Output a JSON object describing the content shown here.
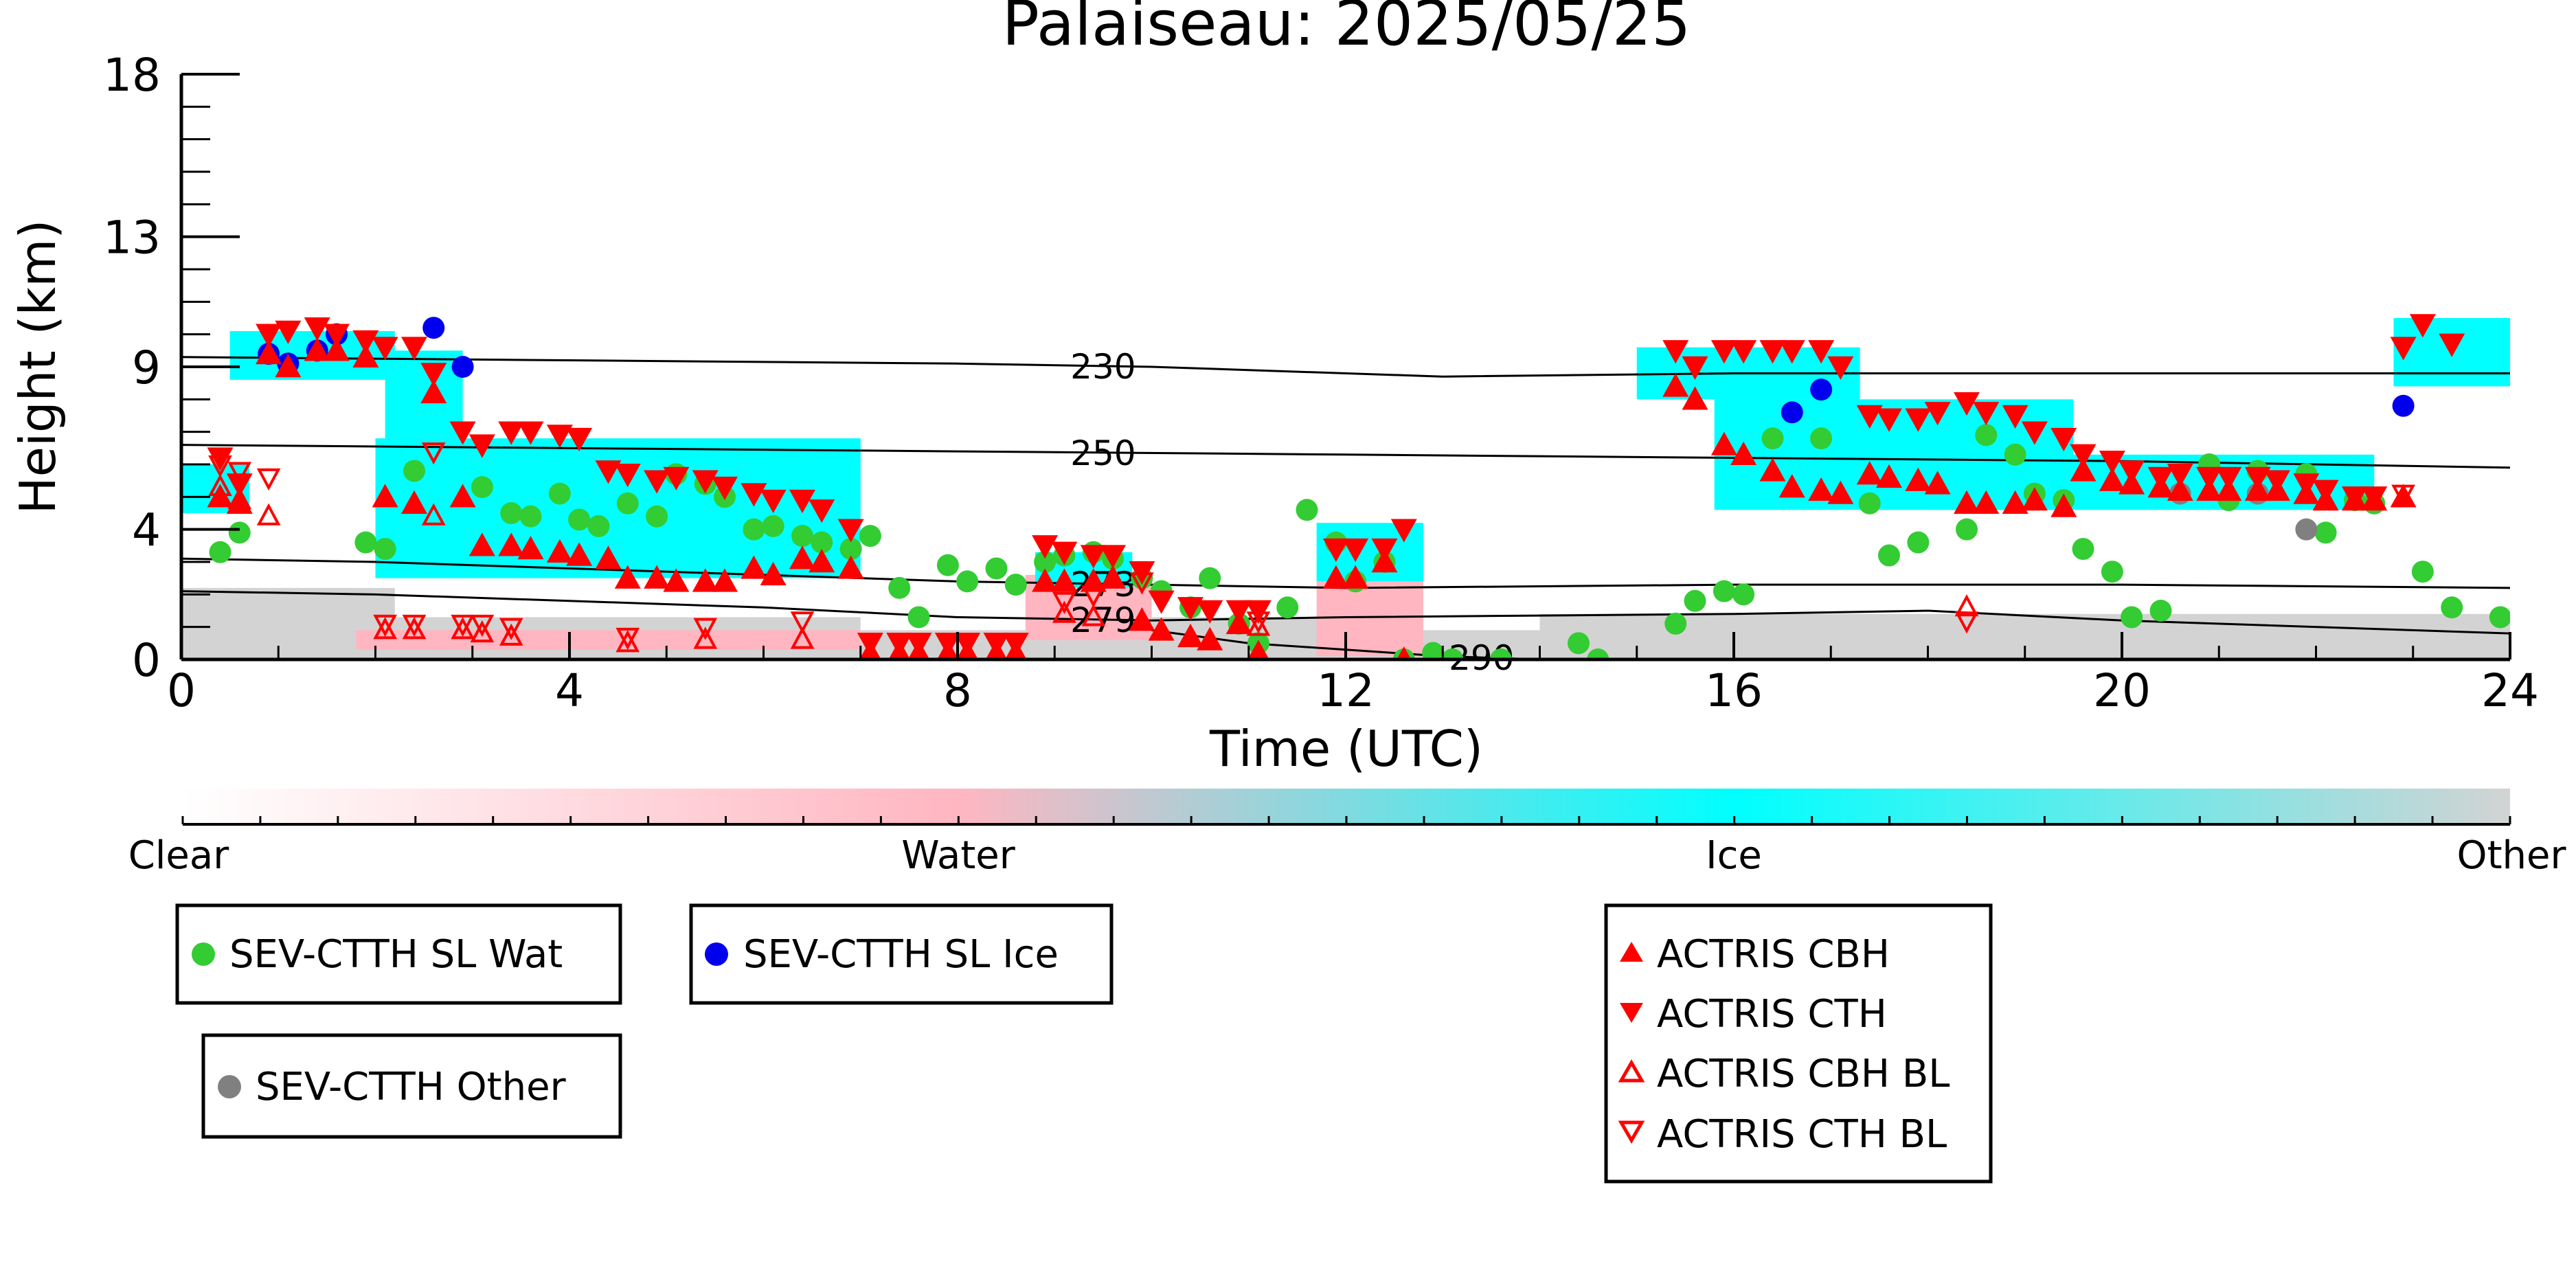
{
  "chart_data": {
    "type": "scatter",
    "title": "Palaiseau: 2025/05/25",
    "xlabel": "Time (UTC)",
    "ylabel": "Height (km)",
    "xlim": [
      0,
      24
    ],
    "ylim": [
      0,
      18
    ],
    "x_ticks": [
      0,
      4,
      8,
      12,
      16,
      20,
      24
    ],
    "y_ticks": [
      0,
      4,
      9,
      13,
      18
    ],
    "y_tick_labels": [
      "0",
      "4",
      "9",
      "13",
      "18"
    ],
    "grid": false,
    "colorbar": {
      "labels": [
        "Clear",
        "Water",
        "Ice",
        "Other"
      ],
      "colors": [
        "#ffffff",
        "#ffb6c1",
        "#00ffff",
        "#d3d3d3"
      ]
    },
    "temperature_contours": [
      {
        "label": "230",
        "label_x": 9.5,
        "x": [
          0,
          4,
          8,
          10,
          13,
          16,
          20,
          24
        ],
        "y": [
          9.3,
          9.2,
          9.1,
          9.0,
          8.7,
          8.8,
          8.8,
          8.8
        ]
      },
      {
        "label": "250",
        "label_x": 9.5,
        "x": [
          0,
          4,
          8,
          12,
          16,
          20,
          24
        ],
        "y": [
          6.6,
          6.5,
          6.4,
          6.3,
          6.2,
          6.1,
          5.9
        ]
      },
      {
        "label": "273",
        "label_x": 9.5,
        "x": [
          0,
          2,
          4,
          6,
          8,
          10,
          12,
          16,
          20,
          24
        ],
        "y": [
          3.1,
          3.0,
          2.8,
          2.6,
          2.4,
          2.3,
          2.2,
          2.3,
          2.3,
          2.2
        ]
      },
      {
        "label": "279",
        "label_x": 9.5,
        "x": [
          0,
          2,
          4,
          6,
          8,
          10,
          12,
          16,
          18,
          20,
          24
        ],
        "y": [
          2.1,
          2.0,
          1.8,
          1.6,
          1.3,
          1.2,
          1.3,
          1.4,
          1.5,
          1.2,
          0.8
        ]
      },
      {
        "label": "290",
        "label_x": 13.4,
        "x": [
          10,
          11,
          12,
          13,
          14,
          15,
          16,
          17
        ],
        "y": [
          0.9,
          0.5,
          0.3,
          0.1,
          0.0,
          0.0,
          0.0,
          0.0
        ]
      }
    ],
    "series": [
      {
        "name": "SEV-CTTH SL Wat",
        "color": "#33cc33",
        "marker": "circle",
        "x": [
          0.4,
          0.6,
          1.9,
          2.1,
          2.4,
          3.1,
          3.4,
          3.6,
          3.9,
          4.1,
          4.3,
          4.6,
          4.9,
          5.1,
          5.4,
          5.6,
          5.9,
          6.1,
          6.4,
          6.6,
          6.9,
          7.1,
          7.4,
          7.6,
          7.9,
          8.1,
          8.4,
          8.6,
          8.9,
          9.1,
          9.4,
          9.6,
          9.9,
          10.1,
          10.4,
          10.6,
          10.9,
          11.1,
          11.4,
          11.6,
          11.9,
          12.1,
          12.4,
          12.6,
          12.9,
          13.1,
          13.6,
          14.4,
          14.6,
          15.4,
          15.6,
          15.9,
          16.1,
          16.4,
          16.9,
          17.4,
          17.6,
          17.9,
          18.4,
          18.6,
          18.9,
          19.1,
          19.4,
          19.6,
          19.9,
          20.1,
          20.4,
          20.9,
          21.1,
          21.4,
          21.9,
          22.1,
          22.4,
          22.6,
          23.1,
          23.4,
          23.9
        ],
        "y": [
          3.3,
          3.9,
          3.6,
          3.4,
          5.8,
          5.3,
          4.5,
          4.4,
          5.1,
          4.3,
          4.1,
          4.8,
          4.4,
          5.7,
          5.4,
          5.0,
          4.0,
          4.1,
          3.8,
          3.6,
          3.4,
          3.8,
          2.2,
          1.3,
          2.9,
          2.4,
          2.8,
          2.3,
          3.0,
          3.2,
          3.3,
          3.1,
          2.5,
          2.1,
          1.6,
          2.5,
          1.1,
          0.5,
          1.6,
          4.6,
          3.6,
          2.4,
          3.0,
          0.0,
          0.2,
          0.0,
          0.0,
          0.5,
          0.0,
          1.1,
          1.8,
          2.1,
          2.0,
          6.8,
          6.8,
          4.8,
          3.2,
          3.6,
          4.0,
          6.9,
          6.3,
          5.1,
          4.9,
          3.4,
          2.7,
          1.3,
          1.5,
          6.0,
          4.9,
          5.8,
          5.7,
          3.9,
          4.9,
          4.8,
          2.7,
          1.6,
          1.3
        ]
      },
      {
        "name": "SEV-CTTH SL Ice",
        "color": "#0000ee",
        "marker": "circle",
        "x": [
          0.9,
          1.1,
          1.4,
          1.6,
          2.6,
          2.9,
          16.6,
          16.9,
          22.9
        ],
        "y": [
          9.4,
          9.1,
          9.5,
          10.0,
          10.2,
          9.0,
          7.6,
          8.3,
          7.8
        ]
      },
      {
        "name": "SEV-CTTH Other",
        "color": "#808080",
        "marker": "circle",
        "x": [
          20.6,
          21.4,
          21.9
        ],
        "y": [
          5.1,
          5.1,
          4.0
        ]
      },
      {
        "name": "ACTRIS CBH",
        "color": "#ff0000",
        "marker": "triangle-up",
        "x": [
          0.4,
          0.6,
          0.9,
          1.1,
          1.4,
          1.6,
          1.9,
          2.1,
          2.4,
          2.6,
          2.9,
          3.1,
          3.4,
          3.6,
          3.9,
          4.1,
          4.4,
          4.6,
          4.9,
          5.1,
          5.4,
          5.6,
          5.9,
          6.1,
          6.4,
          6.6,
          6.9,
          7.1,
          7.4,
          7.6,
          7.9,
          8.1,
          8.4,
          8.6,
          8.9,
          9.1,
          9.4,
          9.6,
          9.9,
          10.1,
          10.4,
          10.6,
          10.9,
          11.1,
          11.9,
          12.1,
          12.4,
          12.6,
          15.4,
          15.6,
          15.9,
          16.1,
          16.4,
          16.6,
          16.9,
          17.1,
          17.4,
          17.6,
          17.9,
          18.1,
          18.4,
          18.6,
          18.9,
          19.1,
          19.4,
          19.6,
          19.9,
          20.1,
          20.4,
          20.6,
          20.9,
          21.1,
          21.4,
          21.6,
          21.9,
          22.1,
          22.4,
          22.6,
          22.9
        ],
        "y": [
          5.0,
          4.8,
          9.4,
          9.0,
          9.5,
          9.5,
          9.3,
          5.0,
          4.8,
          8.2,
          5.0,
          3.5,
          3.5,
          3.4,
          3.3,
          3.2,
          3.1,
          2.5,
          2.5,
          2.4,
          2.4,
          2.4,
          2.8,
          2.6,
          3.1,
          3.0,
          2.8,
          0.2,
          0.2,
          0.2,
          0.2,
          0.2,
          0.2,
          0.2,
          2.4,
          2.4,
          2.4,
          2.5,
          1.2,
          0.9,
          0.7,
          0.6,
          1.1,
          0.2,
          2.5,
          2.5,
          3.0,
          0.0,
          8.4,
          8.0,
          6.6,
          6.3,
          5.8,
          5.3,
          5.2,
          5.1,
          5.7,
          5.6,
          5.5,
          5.4,
          4.8,
          4.8,
          4.8,
          4.9,
          4.7,
          5.8,
          5.5,
          5.4,
          5.3,
          5.2,
          5.2,
          5.2,
          5.2,
          5.2,
          5.1,
          4.9,
          4.9,
          4.9,
          5.0
        ]
      },
      {
        "name": "ACTRIS CTH",
        "color": "#ff0000",
        "marker": "triangle-down",
        "x": [
          0.4,
          0.6,
          0.9,
          1.1,
          1.4,
          1.6,
          1.9,
          2.1,
          2.4,
          2.6,
          2.9,
          3.1,
          3.4,
          3.6,
          3.9,
          4.1,
          4.4,
          4.6,
          4.9,
          5.1,
          5.4,
          5.6,
          5.9,
          6.1,
          6.4,
          6.6,
          6.9,
          7.1,
          7.4,
          7.6,
          7.9,
          8.1,
          8.4,
          8.6,
          8.9,
          9.1,
          9.4,
          9.6,
          9.9,
          10.1,
          10.4,
          10.6,
          10.9,
          11.1,
          11.9,
          12.1,
          12.4,
          12.6,
          15.4,
          15.6,
          15.9,
          16.1,
          16.4,
          16.6,
          16.9,
          17.1,
          17.4,
          17.6,
          17.9,
          18.1,
          18.4,
          18.6,
          18.9,
          19.1,
          19.4,
          19.6,
          19.9,
          20.1,
          20.4,
          20.6,
          20.9,
          21.1,
          21.4,
          21.6,
          21.9,
          22.1,
          22.4,
          22.6,
          22.9,
          23.1,
          23.4
        ],
        "y": [
          6.2,
          5.4,
          10.0,
          10.1,
          10.2,
          10.0,
          9.8,
          9.6,
          9.6,
          8.8,
          7.0,
          6.6,
          7.0,
          7.0,
          6.9,
          6.8,
          5.8,
          5.7,
          5.5,
          5.6,
          5.5,
          5.3,
          5.1,
          4.9,
          4.9,
          4.6,
          4.0,
          0.5,
          0.5,
          0.5,
          0.5,
          0.5,
          0.5,
          0.5,
          3.5,
          3.3,
          3.2,
          3.2,
          2.7,
          1.8,
          1.6,
          1.5,
          1.5,
          1.5,
          3.4,
          3.4,
          3.4,
          4.0,
          9.5,
          9.0,
          9.5,
          9.5,
          9.5,
          9.5,
          9.5,
          9.0,
          7.5,
          7.4,
          7.4,
          7.6,
          7.9,
          7.6,
          7.5,
          7.0,
          6.8,
          6.3,
          6.1,
          5.8,
          5.6,
          5.7,
          5.6,
          5.6,
          5.6,
          5.5,
          5.4,
          5.2,
          5.0,
          5.0,
          9.6,
          10.3,
          9.7
        ]
      },
      {
        "name": "ACTRIS CBH BL",
        "color": "#ff0000",
        "marker": "triangle-up-open",
        "x": [
          0.4,
          0.6,
          0.9,
          2.1,
          2.4,
          2.6,
          2.9,
          3.1,
          3.4,
          4.6,
          5.4,
          6.4,
          9.1,
          9.4,
          9.9,
          11.1,
          18.4
        ],
        "y": [
          5.3,
          4.9,
          4.4,
          0.9,
          0.9,
          4.4,
          0.9,
          0.8,
          0.7,
          0.5,
          0.6,
          0.6,
          1.4,
          1.3,
          1.2,
          1.0,
          1.6
        ]
      },
      {
        "name": "ACTRIS CTH BL",
        "color": "#ff0000",
        "marker": "triangle-down-open",
        "x": [
          0.4,
          0.6,
          0.9,
          2.1,
          2.4,
          2.6,
          2.9,
          3.1,
          3.4,
          4.6,
          5.4,
          6.4,
          9.1,
          9.4,
          9.9,
          11.1,
          18.4,
          22.9
        ],
        "y": [
          6.0,
          5.8,
          5.6,
          1.1,
          1.1,
          6.4,
          1.1,
          1.1,
          1.0,
          0.7,
          1.0,
          1.2,
          1.8,
          2.0,
          2.4,
          1.2,
          1.2,
          5.1
        ]
      }
    ],
    "legend_placement": "bottom"
  }
}
